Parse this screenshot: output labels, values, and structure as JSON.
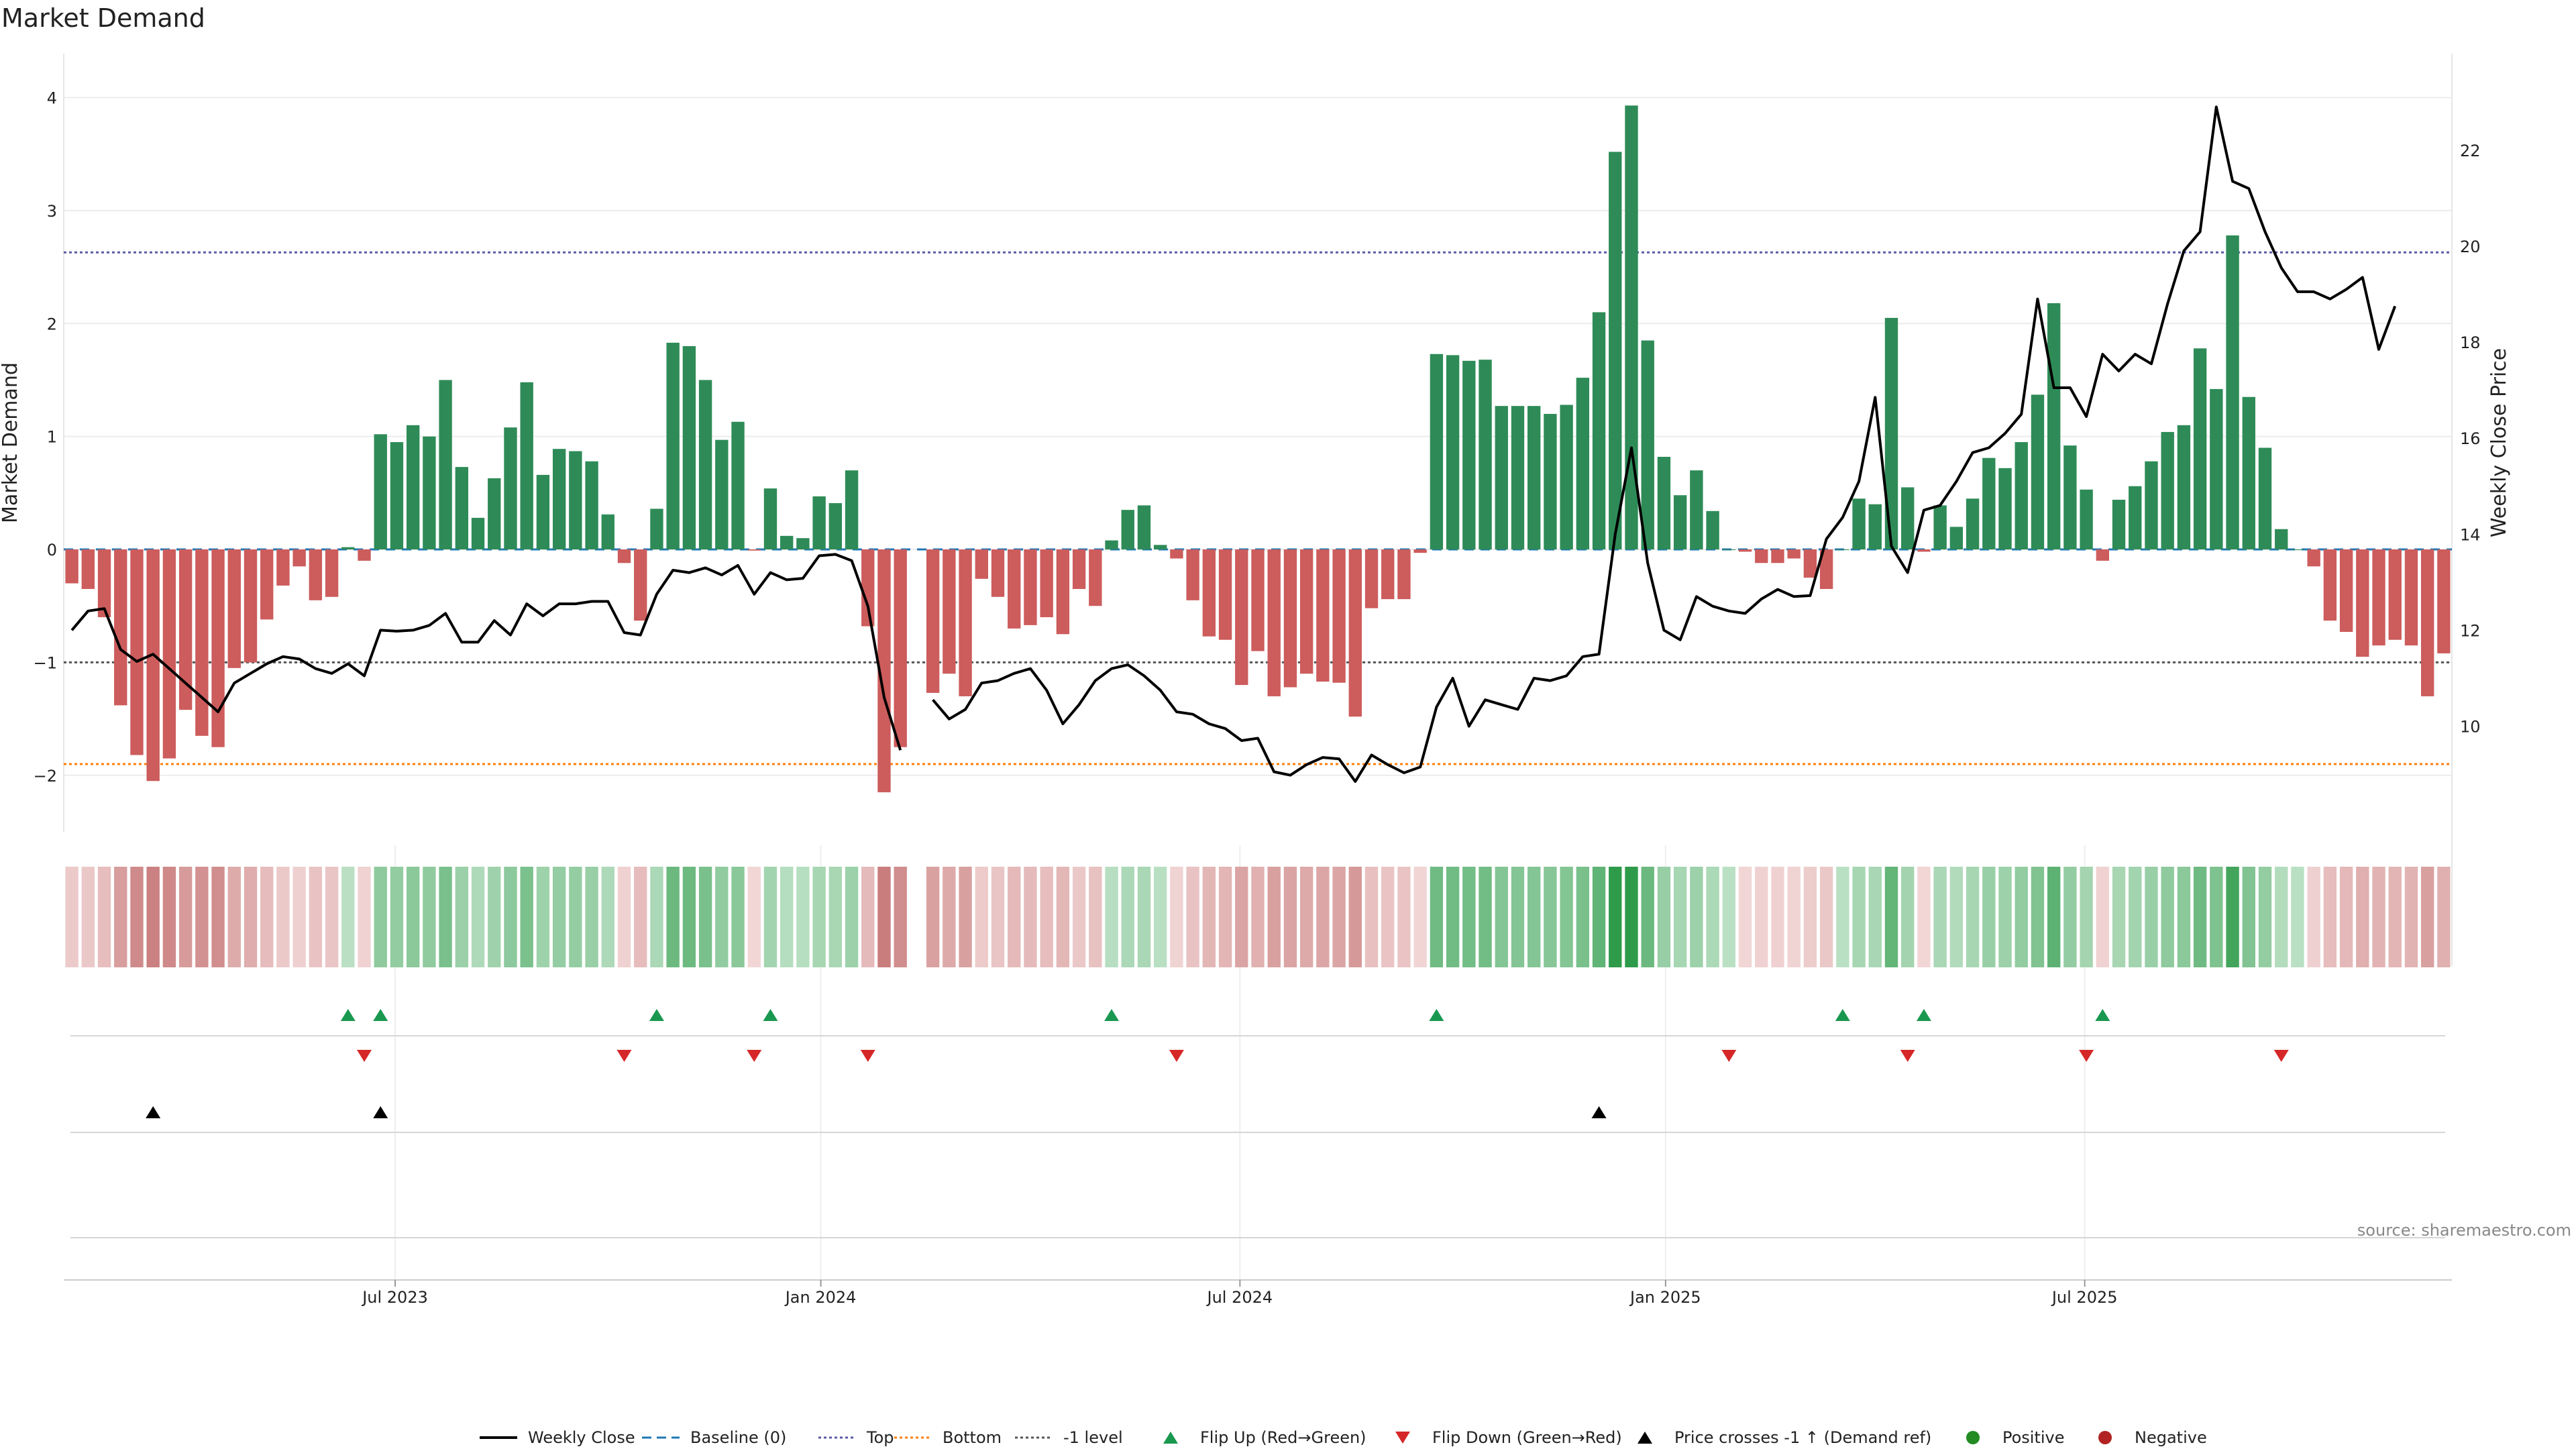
{
  "chart_data": {
    "type": "bar",
    "title": "Market Demand",
    "ylabel": "Market Demand",
    "y2label": "Weekly Close Price",
    "ylim": [
      -2.5,
      4.3
    ],
    "y2lim": [
      7.8,
      23.8
    ],
    "yticks": [
      "−2",
      "−1",
      "0",
      "1",
      "2",
      "3",
      "4"
    ],
    "ytick_values": [
      -2,
      -1,
      0,
      1,
      2,
      3,
      4
    ],
    "y2ticks": [
      "10",
      "12",
      "14",
      "16",
      "18",
      "20",
      "22"
    ],
    "y2tick_values": [
      10,
      12,
      14,
      16,
      18,
      20,
      22
    ],
    "xticks": [
      "Jul 2023",
      "Jan 2024",
      "Jul 2024",
      "Jan 2025",
      "Jul 2025"
    ],
    "xtick_week_index": [
      19.9,
      46.1,
      71.9,
      98.1,
      123.9
    ],
    "grid": true,
    "reference_lines": {
      "baseline": 0,
      "top": 2.63,
      "bottom": -1.9,
      "minus_one": -1
    },
    "demand": [
      -0.3,
      -0.35,
      -0.6,
      -1.38,
      -1.82,
      -2.05,
      -1.85,
      -1.42,
      -1.65,
      -1.75,
      -1.05,
      -1.0,
      -0.62,
      -0.32,
      -0.15,
      -0.45,
      -0.42,
      0.02,
      -0.1,
      1.02,
      0.95,
      1.1,
      1.0,
      1.5,
      0.73,
      0.28,
      0.63,
      1.08,
      1.48,
      0.66,
      0.89,
      0.87,
      0.78,
      0.31,
      -0.12,
      -0.63,
      0.36,
      1.83,
      1.8,
      1.5,
      0.97,
      1.13,
      -0.01,
      0.54,
      0.12,
      0.1,
      0.47,
      0.41,
      0.7,
      -0.68,
      -2.15,
      -1.75,
      null,
      -1.27,
      -1.1,
      -1.3,
      -0.26,
      -0.42,
      -0.7,
      -0.67,
      -0.6,
      -0.75,
      -0.35,
      -0.5,
      0.08,
      0.35,
      0.39,
      0.04,
      -0.08,
      -0.45,
      -0.77,
      -0.8,
      -1.2,
      -0.9,
      -1.3,
      -1.22,
      -1.1,
      -1.17,
      -1.18,
      -1.48,
      -0.52,
      -0.44,
      -0.44,
      -0.03,
      1.73,
      1.72,
      1.67,
      1.68,
      1.27,
      1.27,
      1.27,
      1.2,
      1.28,
      1.52,
      2.1,
      3.52,
      3.93,
      1.85,
      0.82,
      0.48,
      0.7,
      0.34,
      0.0,
      -0.02,
      -0.12,
      -0.12,
      -0.08,
      -0.25,
      -0.35,
      0.0,
      0.45,
      0.4,
      2.05,
      0.55,
      -0.02,
      0.39,
      0.2,
      0.45,
      0.81,
      0.72,
      0.95,
      1.37,
      2.18,
      0.92,
      0.53,
      -0.1,
      0.44,
      0.56,
      0.78,
      1.04,
      1.1,
      1.78,
      1.42,
      2.78,
      1.35,
      0.9,
      0.18,
      0.0,
      -0.15,
      -0.63,
      -0.73,
      -0.95,
      -0.85,
      -0.8,
      -0.85,
      -1.3,
      -0.92
    ],
    "close": [
      12.0,
      12.4,
      12.45,
      11.6,
      11.35,
      11.5,
      11.2,
      10.9,
      10.6,
      10.3,
      10.9,
      11.1,
      11.3,
      11.45,
      11.4,
      11.2,
      11.1,
      11.3,
      11.05,
      12.0,
      11.98,
      12.0,
      12.1,
      12.35,
      11.75,
      11.75,
      12.2,
      11.9,
      12.55,
      12.3,
      12.55,
      12.55,
      12.6,
      12.6,
      11.95,
      11.9,
      12.75,
      13.25,
      13.2,
      13.3,
      13.15,
      13.35,
      12.75,
      13.2,
      13.05,
      13.08,
      13.55,
      13.58,
      13.45,
      12.5,
      10.6,
      9.5,
      null,
      10.55,
      10.15,
      10.35,
      10.9,
      10.95,
      11.1,
      11.2,
      10.75,
      10.05,
      10.45,
      10.95,
      11.2,
      11.28,
      11.05,
      10.75,
      10.3,
      10.25,
      10.05,
      9.95,
      9.7,
      9.75,
      9.05,
      8.98,
      9.2,
      9.35,
      9.32,
      8.85,
      9.4,
      9.2,
      9.03,
      9.15,
      10.4,
      11.0,
      10.0,
      10.55,
      10.45,
      10.35,
      11.0,
      10.95,
      11.05,
      11.45,
      11.5,
      14.0,
      15.8,
      13.4,
      12.0,
      11.8,
      12.7,
      12.5,
      12.4,
      12.35,
      12.65,
      12.85,
      12.7,
      12.72,
      13.9,
      14.35,
      15.1,
      16.85,
      13.75,
      13.2,
      14.5,
      14.6,
      15.1,
      15.7,
      15.8,
      16.1,
      16.5,
      18.9,
      17.05,
      17.05,
      16.45,
      17.75,
      17.4,
      17.75,
      17.55,
      18.8,
      19.9,
      20.3,
      22.9,
      21.35,
      21.2,
      20.3,
      19.55,
      19.05,
      19.05,
      18.9,
      19.1,
      19.35,
      17.85,
      18.75
    ],
    "heat_gap_index": [
      52
    ],
    "flip_up_index": [
      17,
      19,
      36,
      43,
      64,
      84,
      109,
      114,
      125
    ],
    "flip_down_index": [
      18,
      34,
      42,
      49,
      68,
      102,
      113,
      124,
      136
    ],
    "price_cross_index": [
      5,
      19,
      94
    ],
    "source": "source: sharemaestro.com",
    "colors": {
      "positive": "#2e8b57",
      "negative": "#cd5c5c",
      "price": "#000000",
      "baseline": "#1f77b4",
      "top": "#5a5aa8",
      "bottom": "#ff7f0e",
      "minus_one": "#555555",
      "flip_up": "#1a9850",
      "flip_down": "#d62728",
      "cross": "#000000",
      "pos_dot": "#228b22",
      "neg_dot": "#b22222"
    }
  },
  "legend": [
    {
      "label": "Weekly Close",
      "marker": "line-solid"
    },
    {
      "label": "Baseline (0)",
      "marker": "line-dash"
    },
    {
      "label": "Top",
      "marker": "line-dot-blue"
    },
    {
      "label": "Bottom",
      "marker": "line-dot-orange"
    },
    {
      "label": "-1 level",
      "marker": "line-dot-gray"
    },
    {
      "label": "Flip Up (Red→Green)",
      "marker": "triangle-up-green"
    },
    {
      "label": "Flip Down (Green→Red)",
      "marker": "triangle-down-red"
    },
    {
      "label": "Price crosses -1 ↑ (Demand ref)",
      "marker": "triangle-up-black"
    },
    {
      "label": "Positive",
      "marker": "dot-green"
    },
    {
      "label": "Negative",
      "marker": "dot-red"
    }
  ]
}
